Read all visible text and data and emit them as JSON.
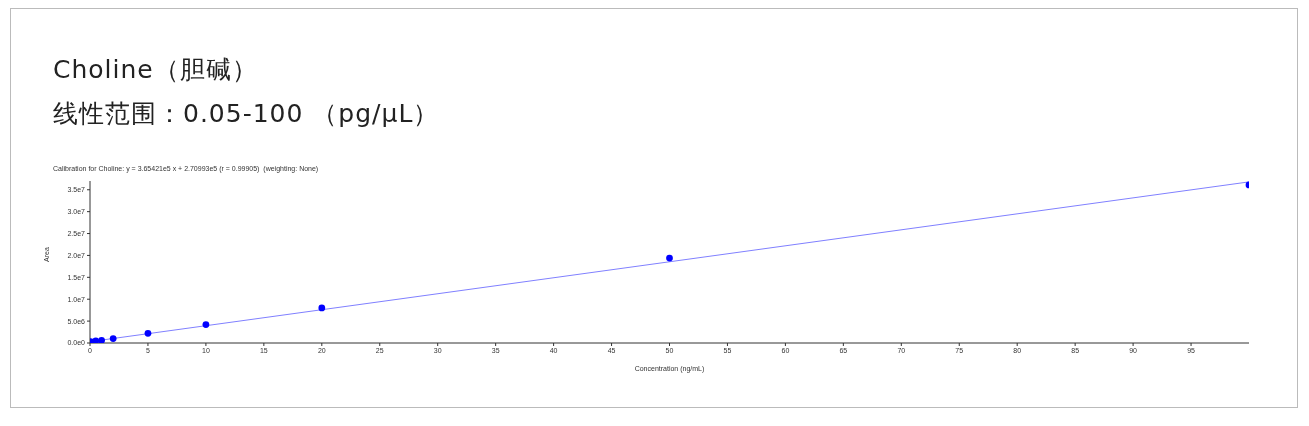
{
  "chart_data": {
    "type": "scatter",
    "title": "Choline（胆碱）",
    "subtitle": "线性范围：0.05-100 （pg/μL）",
    "annotations": [
      "Calibration for Choline: y = 3.65421e5 x + 2.70993e5 (r = 0.99905)  (weighting: None)"
    ],
    "xlabel": "Concentration (ng/mL)",
    "ylabel": "Area",
    "series": [
      {
        "color": "#0000ff",
        "marker": "circle",
        "x": [
          0.05,
          0.5,
          1,
          2,
          5,
          10,
          20,
          50,
          100
        ],
        "values": [
          300000,
          500000,
          600000,
          1000000,
          2200000,
          4200000,
          8000000,
          19400000,
          36100000
        ]
      },
      {
        "type": "line",
        "color": "#8080ff",
        "x": [
          0,
          100
        ],
        "values": [
          300000,
          36800000
        ]
      }
    ],
    "xlim": [
      0,
      100
    ],
    "xticks": [
      0,
      5,
      10,
      15,
      20,
      25,
      30,
      35,
      40,
      45,
      50,
      55,
      60,
      65,
      70,
      75,
      80,
      85,
      90,
      95
    ],
    "ylim": [
      0,
      37000000
    ],
    "yticks": [
      {
        "value": 0,
        "label": "0.0e0"
      },
      {
        "value": 5000000,
        "label": "5.0e6"
      },
      {
        "value": 10000000,
        "label": "1.0e7"
      },
      {
        "value": 15000000,
        "label": "1.5e7"
      },
      {
        "value": 20000000,
        "label": "2.0e7"
      },
      {
        "value": 25000000,
        "label": "2.5e7"
      },
      {
        "value": 30000000,
        "label": "3.0e7"
      },
      {
        "value": 35000000,
        "label": "3.5e7"
      }
    ],
    "grid": false
  }
}
